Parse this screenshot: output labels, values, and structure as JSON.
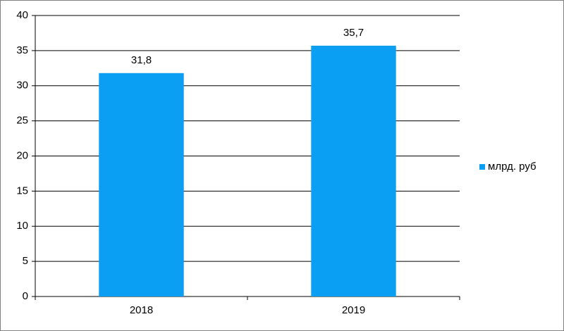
{
  "chart_data": {
    "type": "bar",
    "categories": [
      "2018",
      "2019"
    ],
    "series": [
      {
        "name": "млрд. руб",
        "color": "#0a9ff2",
        "values": [
          31.8,
          35.7
        ],
        "value_labels": [
          "31,8",
          "35,7"
        ]
      }
    ],
    "ylim": [
      0,
      40
    ],
    "yticks": [
      0,
      5,
      10,
      15,
      20,
      25,
      30,
      35,
      40
    ],
    "grid": true,
    "legend": "right"
  }
}
